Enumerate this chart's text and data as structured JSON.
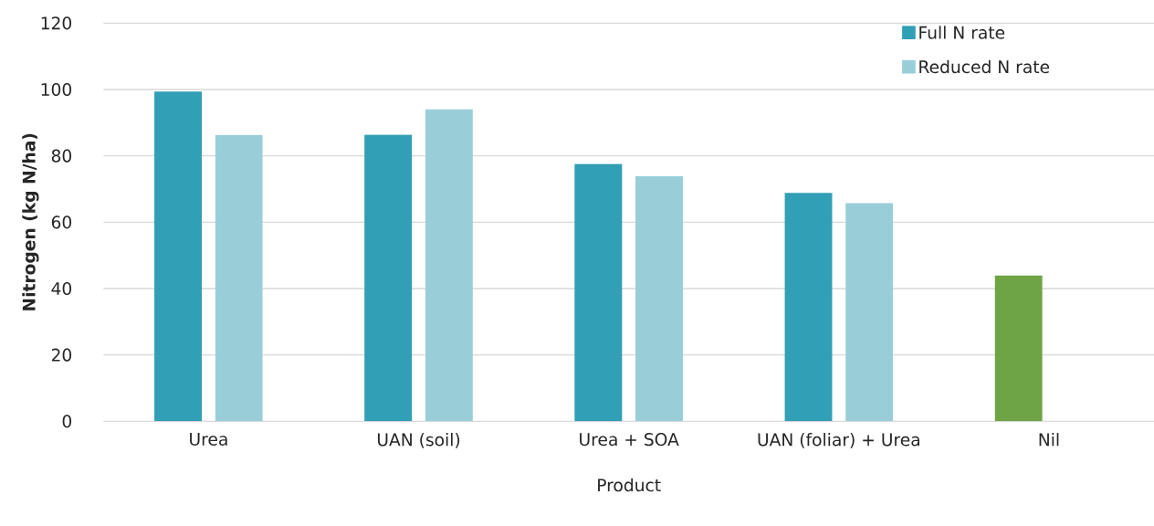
{
  "chart_data": {
    "type": "bar",
    "xlabel": "Product",
    "ylabel": "Nitrogen (kg N/ha)",
    "categories": [
      "Urea",
      "UAN (soil)",
      "Urea + SOA",
      "UAN (foliar) + Urea",
      "Nil"
    ],
    "series": [
      {
        "name": "Full N rate",
        "color": "#319fb5",
        "colors": [
          "#319fb5",
          "#319fb5",
          "#319fb5",
          "#319fb5",
          "#6ea346"
        ],
        "values": [
          99.4,
          86.4,
          77.6,
          68.8,
          43.9
        ]
      },
      {
        "name": "Reduced N rate",
        "color": "#99ced9",
        "values": [
          86.3,
          94.0,
          73.9,
          65.8,
          null
        ]
      }
    ],
    "ylim": [
      0,
      120
    ],
    "yticks": [
      0,
      20,
      40,
      60,
      80,
      100,
      120
    ],
    "grid": "y",
    "legend": "top right"
  }
}
